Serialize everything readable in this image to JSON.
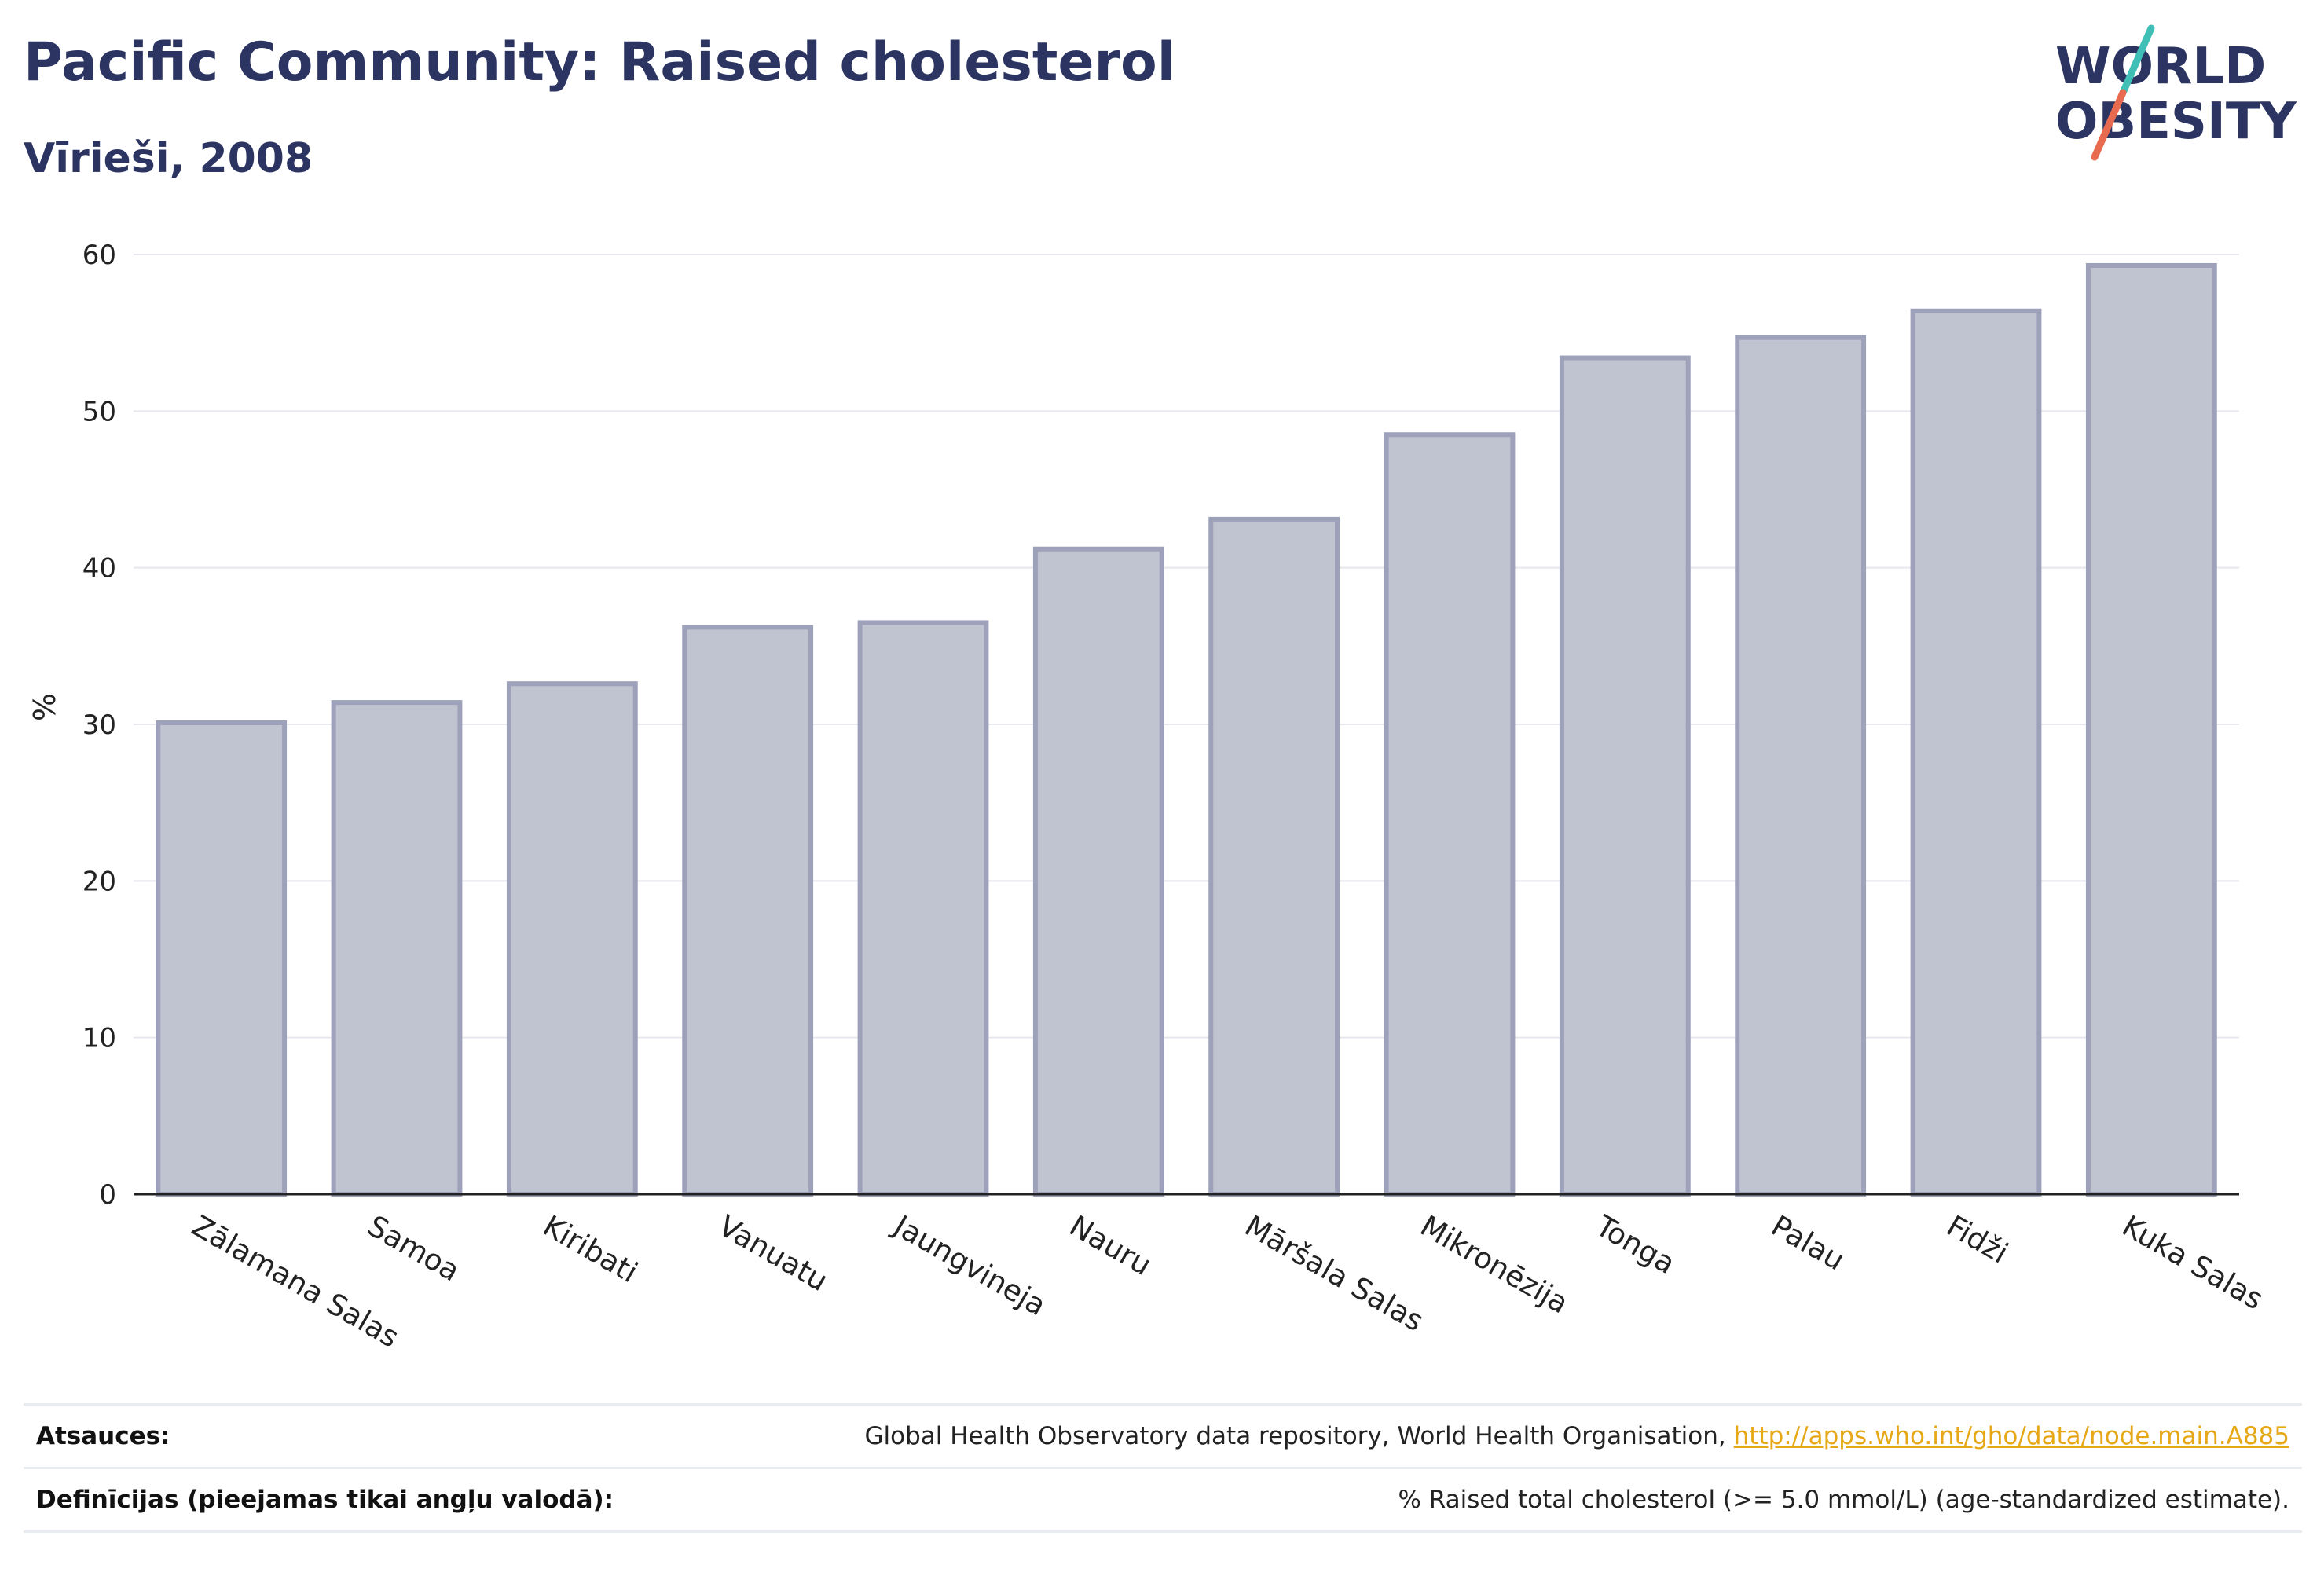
{
  "header": {
    "title": "Pacific Community: Raised cholesterol",
    "subtitle": "Vīrieši, 2008"
  },
  "logo": {
    "line1": "WORLD",
    "line2": "OBESITY",
    "slash_colors": [
      "#3fbfb5",
      "#e86a4f"
    ],
    "text_color": "#2c3462"
  },
  "chart_data": {
    "type": "bar",
    "categories": [
      "Zālamana Salas",
      "Samoa",
      "Kiribati",
      "Vanuatu",
      "Jaungvineja",
      "Nauru",
      "Māršala Salas",
      "Mikronēzija",
      "Tonga",
      "Palau",
      "Fidži",
      "Kuka Salas"
    ],
    "values": [
      30.1,
      31.4,
      32.6,
      36.2,
      36.5,
      41.2,
      43.1,
      48.5,
      53.4,
      54.7,
      56.4,
      59.3
    ],
    "ylabel": "%",
    "ylim": [
      0,
      60
    ],
    "yticks": [
      0,
      10,
      20,
      30,
      40,
      50,
      60
    ],
    "grid": true,
    "bar_fill": "#c0c3d0",
    "bar_stroke": "#9da1b9",
    "axis_color": "#222222",
    "grid_color": "#e6e8ee"
  },
  "notes": {
    "sources_label": "Atsauces:",
    "sources_text": "Global Health Observatory data repository, World Health Organisation, ",
    "sources_link": "http://apps.who.int/gho/data/node.main.A885",
    "definitions_label": "Definīcijas (pieejamas tikai angļu valodā):",
    "definitions_text": "% Raised total cholesterol (>= 5.0 mmol/L) (age-standardized estimate)."
  }
}
